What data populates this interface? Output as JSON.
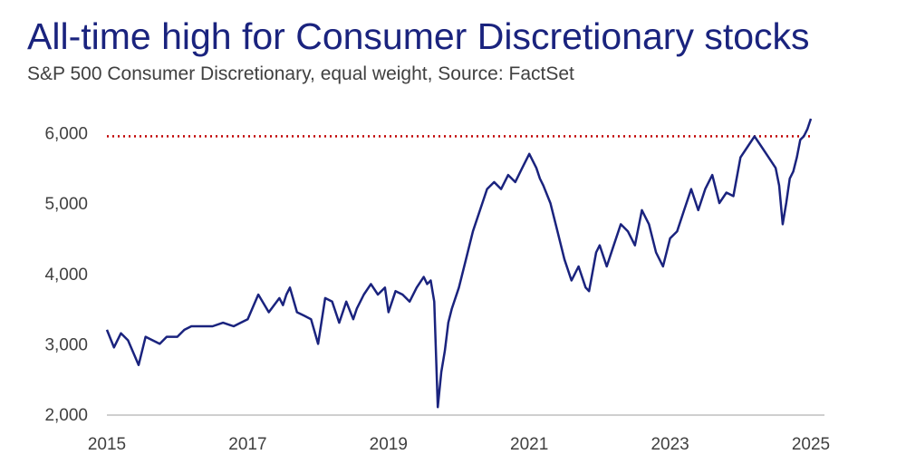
{
  "title": "All-time high for Consumer Discretionary stocks",
  "subtitle": "S&P 500 Consumer Discretionary, equal weight, Source: FactSet",
  "colors": {
    "series": "#1a237e",
    "reference_line": "#c00000",
    "axis": "#bfbfbf",
    "text": "#404040"
  },
  "chart_data": {
    "type": "line",
    "title": "All-time high for Consumer Discretionary stocks",
    "subtitle": "S&P 500 Consumer Discretionary, equal weight, Source: FactSet",
    "xlabel": "",
    "ylabel": "",
    "xlim": [
      2015.0,
      2025.0
    ],
    "ylim": [
      2000,
      6200
    ],
    "x_ticks": [
      2015,
      2017,
      2019,
      2021,
      2023,
      2025
    ],
    "x_tick_labels": [
      "2015",
      "2017",
      "2019",
      "2021",
      "2023",
      "2025"
    ],
    "y_ticks": [
      2000,
      3000,
      4000,
      5000,
      6000
    ],
    "y_tick_labels": [
      "2,000",
      "3,000",
      "4,000",
      "5,000",
      "6,000"
    ],
    "grid": false,
    "legend": "none",
    "reference_line": {
      "y": 5950,
      "style": "dotted"
    },
    "series": [
      {
        "x": [
          2015.0,
          2015.1,
          2015.2,
          2015.3,
          2015.45,
          2015.55,
          2015.65,
          2015.75,
          2015.85,
          2016.0,
          2016.1,
          2016.2,
          2016.35,
          2016.5,
          2016.65,
          2016.8,
          2016.9,
          2017.0,
          2017.15,
          2017.3,
          2017.45,
          2017.5,
          2017.55,
          2017.6,
          2017.7,
          2017.8,
          2017.9,
          2018.0,
          2018.1,
          2018.2,
          2018.3,
          2018.4,
          2018.5,
          2018.55,
          2018.65,
          2018.75,
          2018.85,
          2018.95,
          2019.0,
          2019.1,
          2019.2,
          2019.3,
          2019.4,
          2019.5,
          2019.55,
          2019.6,
          2019.65,
          2019.7,
          2019.75,
          2019.8,
          2019.85,
          2019.9,
          2020.0,
          2020.1,
          2020.2,
          2020.3,
          2020.4,
          2020.5,
          2020.6,
          2020.7,
          2020.8,
          2020.9,
          2021.0,
          2021.1,
          2021.15,
          2021.2,
          2021.3,
          2021.4,
          2021.5,
          2021.6,
          2021.7,
          2021.8,
          2021.85,
          2021.95,
          2022.0,
          2022.1,
          2022.2,
          2022.3,
          2022.4,
          2022.5,
          2022.6,
          2022.7,
          2022.8,
          2022.9,
          2023.0,
          2023.1,
          2023.2,
          2023.3,
          2023.4,
          2023.5,
          2023.6,
          2023.7,
          2023.8,
          2023.9,
          2024.0,
          2024.1,
          2024.2,
          2024.3,
          2024.4,
          2024.5,
          2024.55,
          2024.6,
          2024.65,
          2024.7,
          2024.75,
          2024.8,
          2024.85,
          2024.9,
          2024.95,
          2025.0
        ],
        "y": [
          3200,
          2950,
          3150,
          3050,
          2700,
          3100,
          3050,
          3000,
          3100,
          3100,
          3200,
          3250,
          3250,
          3250,
          3300,
          3250,
          3300,
          3350,
          3700,
          3450,
          3650,
          3550,
          3700,
          3800,
          3450,
          3400,
          3350,
          3000,
          3650,
          3600,
          3300,
          3600,
          3350,
          3500,
          3700,
          3850,
          3700,
          3800,
          3450,
          3750,
          3700,
          3600,
          3800,
          3950,
          3850,
          3900,
          3600,
          2100,
          2600,
          2900,
          3300,
          3500,
          3800,
          4200,
          4600,
          4900,
          5200,
          5300,
          5200,
          5400,
          5300,
          5500,
          5700,
          5500,
          5350,
          5250,
          5000,
          4600,
          4200,
          3900,
          4100,
          3800,
          3750,
          4300,
          4400,
          4100,
          4400,
          4700,
          4600,
          4400,
          4900,
          4700,
          4300,
          4100,
          4500,
          4600,
          4900,
          5200,
          4900,
          5200,
          5400,
          5000,
          5150,
          5100,
          5650,
          5800,
          5950,
          5800,
          5650,
          5500,
          5250,
          4700,
          5000,
          5350,
          5450,
          5650,
          5900,
          5950,
          6050,
          6200
        ]
      }
    ]
  }
}
